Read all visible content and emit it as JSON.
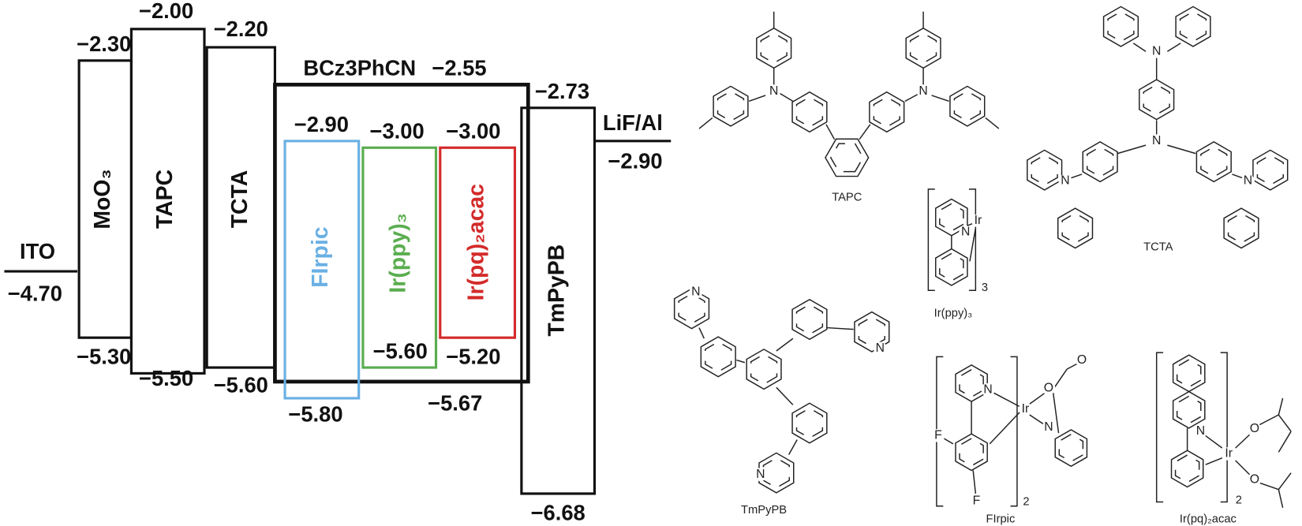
{
  "energy_levels": {
    "electrodes": [
      {
        "name": "ITO",
        "level": "−4.70"
      },
      {
        "name": "LiF/Al",
        "level": "−2.90"
      }
    ],
    "layers": [
      {
        "name": "MoO₃",
        "lumo": "−2.30",
        "homo": "−5.30"
      },
      {
        "name": "TAPC",
        "lumo": "−2.00",
        "homo": "−5.50"
      },
      {
        "name": "TCTA",
        "lumo": "−2.20",
        "homo": "−5.60"
      },
      {
        "name": "TmPyPB",
        "lumo": "−2.73",
        "homo": "−6.68"
      }
    ],
    "host": {
      "name": "BCz3PhCN",
      "lumo": "−2.55",
      "homo": "−5.67"
    },
    "dopants": [
      {
        "name": "FIrpic",
        "lumo": "−2.90",
        "homo": "−5.80"
      },
      {
        "name": "Ir(ppy)₃",
        "lumo": "−3.00",
        "homo": "−5.60"
      },
      {
        "name": "Ir(pq)₂acac",
        "lumo": "−3.00",
        "homo": "−5.20"
      }
    ]
  },
  "structures": [
    {
      "name": "TAPC",
      "atoms": [
        "N",
        "N"
      ]
    },
    {
      "name": "TCTA",
      "atoms": [
        "N",
        "N",
        "N",
        "N"
      ]
    },
    {
      "name": "Ir(ppy)₃",
      "atoms": [
        "N",
        "Ir"
      ],
      "subscript": "3"
    },
    {
      "name": "TmPyPB",
      "atoms": [
        "N",
        "N",
        "N"
      ]
    },
    {
      "name": "FIrpic",
      "atoms": [
        "N",
        "Ir",
        "O",
        "O",
        "N",
        "F",
        "F"
      ],
      "subscript": "2"
    },
    {
      "name": "Ir(pq)₂acac",
      "atoms": [
        "N",
        "Ir",
        "O",
        "O"
      ],
      "subscript": "2"
    }
  ]
}
